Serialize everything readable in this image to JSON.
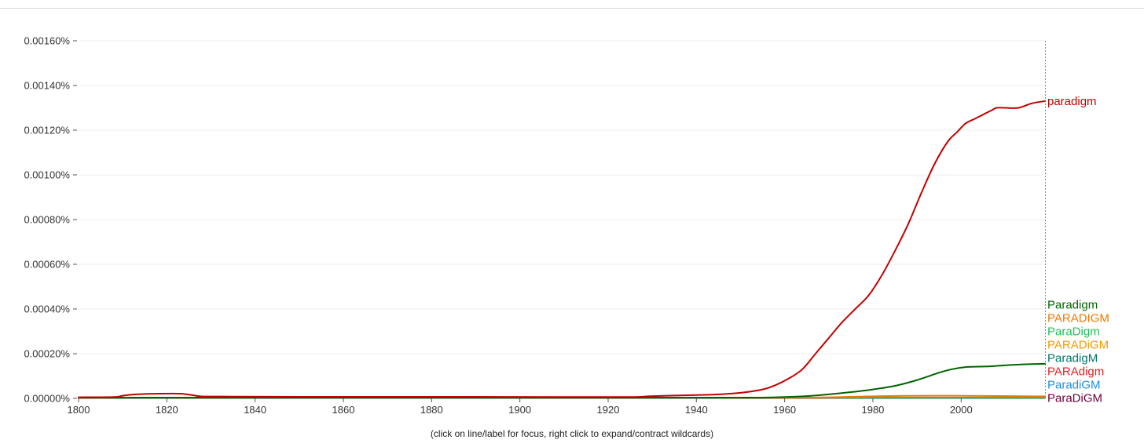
{
  "chart_data": {
    "type": "line",
    "title": "",
    "xlabel": "",
    "ylabel": "",
    "xlim": [
      1800,
      2019
    ],
    "ylim": [
      0,
      0.0016
    ],
    "y_unit": "%",
    "x_ticks": [
      1800,
      1820,
      1840,
      1860,
      1880,
      1900,
      1920,
      1940,
      1960,
      1980,
      2000
    ],
    "y_ticks": [
      "0.00000%",
      "0.00020%",
      "0.00040%",
      "0.00060%",
      "0.00080%",
      "0.00100%",
      "0.00120%",
      "0.00140%",
      "0.00160%"
    ],
    "grid": true,
    "legend": "right, end of lines",
    "hint": "(click on line/label for focus, right click to expand/contract wildcards)",
    "series": [
      {
        "name": "paradigm",
        "color": "#c40000",
        "x": [
          1800,
          1808,
          1810,
          1813,
          1818,
          1823,
          1826,
          1828,
          1835,
          1850,
          1870,
          1890,
          1910,
          1925,
          1930,
          1940,
          1945,
          1950,
          1955,
          1958,
          1961,
          1964,
          1967,
          1970,
          1973,
          1976,
          1979,
          1982,
          1985,
          1988,
          1991,
          1994,
          1997,
          1999,
          2001,
          2003,
          2005,
          2007,
          2008,
          2010,
          2013,
          2016,
          2019
        ],
        "y": [
          5e-06,
          6e-06,
          1.2e-05,
          1.8e-05,
          2.1e-05,
          2.1e-05,
          1.4e-05,
          9e-06,
          8e-06,
          7e-06,
          7e-06,
          7e-06,
          6e-06,
          6e-06,
          1e-05,
          1.5e-05,
          1.8e-05,
          2.5e-05,
          4e-05,
          6e-05,
          9e-05,
          0.00013,
          0.0002,
          0.00027,
          0.00034,
          0.0004,
          0.00046,
          0.00055,
          0.00066,
          0.00078,
          0.00092,
          0.00105,
          0.00115,
          0.00119,
          0.00123,
          0.00125,
          0.00127,
          0.00129,
          0.0013,
          0.0013,
          0.0013,
          0.00132,
          0.00133
        ]
      },
      {
        "name": "Paradigm",
        "color": "#006400",
        "x": [
          1800,
          1850,
          1900,
          1940,
          1950,
          1955,
          1960,
          1965,
          1970,
          1975,
          1980,
          1985,
          1990,
          1995,
          1998,
          2001,
          2004,
          2007,
          2010,
          2014,
          2019
        ],
        "y": [
          1e-06,
          1e-06,
          1e-06,
          1e-06,
          2e-06,
          3e-06,
          6e-06,
          1e-05,
          1.8e-05,
          2.8e-05,
          4e-05,
          5.6e-05,
          8.2e-05,
          0.000115,
          0.000131,
          0.00014,
          0.000142,
          0.000144,
          0.000148,
          0.000152,
          0.000155
        ]
      },
      {
        "name": "PARADIGM",
        "color": "#f07800",
        "x": [
          1800,
          1900,
          1950,
          1965,
          1975,
          1985,
          1995,
          2005,
          2019
        ],
        "y": [
          1e-06,
          1e-06,
          1e-06,
          3e-06,
          7e-06,
          1.1e-05,
          1.2e-05,
          1.1e-05,
          9e-06
        ]
      },
      {
        "name": "ParaDigm",
        "color": "#1ec05a",
        "x": [
          1800,
          1950,
          1980,
          2000,
          2019
        ],
        "y": [
          5e-07,
          5e-07,
          1e-06,
          2e-06,
          2e-06
        ]
      },
      {
        "name": "ParaDiGM",
        "color": "#6a003a",
        "x": [
          1800,
          1950,
          1980,
          2000,
          2019
        ],
        "y": [
          3e-07,
          3e-07,
          6e-07,
          1e-06,
          1e-06
        ]
      },
      {
        "name": "ParadiGM",
        "color": "#1e8fe0",
        "x": [
          1800,
          1950,
          1980,
          2000,
          2019
        ],
        "y": [
          3e-07,
          3e-07,
          6e-07,
          1e-06,
          1e-06
        ]
      },
      {
        "name": "PARAdigm",
        "color": "#e02020",
        "x": [
          1800,
          1950,
          1980,
          2000,
          2019
        ],
        "y": [
          3e-07,
          3e-07,
          6e-07,
          1e-06,
          1e-06
        ]
      },
      {
        "name": "ParadigM",
        "color": "#00736b",
        "x": [
          1800,
          1950,
          1980,
          2000,
          2019
        ],
        "y": [
          3e-07,
          3e-07,
          6e-07,
          1e-06,
          1e-06
        ]
      },
      {
        "name": "PARADiGM",
        "color": "#f59a00",
        "x": [
          1800,
          1950,
          1980,
          2000,
          2019
        ],
        "y": [
          3e-07,
          3e-07,
          6e-07,
          1e-06,
          1e-06
        ]
      }
    ]
  }
}
